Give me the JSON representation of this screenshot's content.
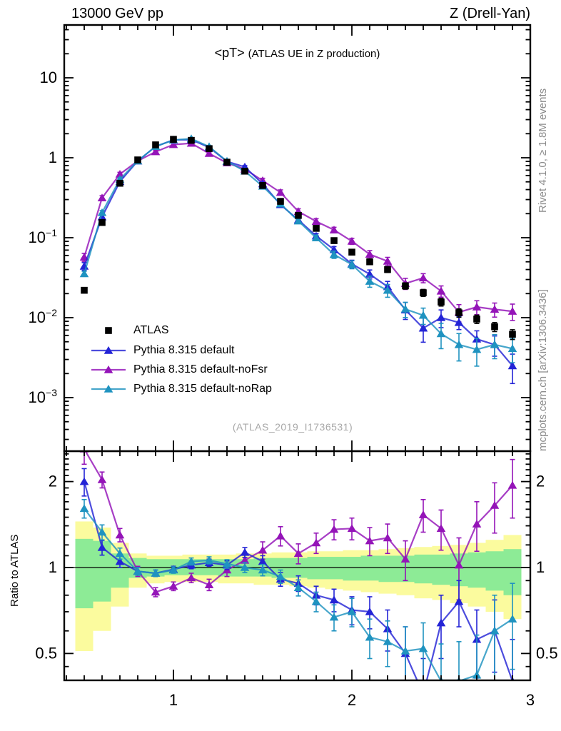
{
  "header": {
    "left": "13000 GeV pp",
    "right": "Z (Drell-Yan)"
  },
  "title": {
    "main": "<pT>",
    "sub": "(ATLAS UE in Z production)"
  },
  "watermark": "(ATLAS_2019_I1736531)",
  "side_notes": {
    "top": "Rivet 4.1.0, ≥ 1.8M events",
    "bottom": "mcplots.cern.ch [arXiv:1306.3436]"
  },
  "ratio_axis_label": "Ratio to ATLAS",
  "colors": {
    "frame": "#000000",
    "atlas": "#000000",
    "blue": "#2424d6",
    "purple": "#9414b8",
    "teal": "#1f93c0",
    "band_yellow": "#fbfb9e",
    "band_green": "#8deb96",
    "gray_text": "#8c8c8c",
    "watermark_gray": "#a8a8a8"
  },
  "chart_data": {
    "type": "line",
    "x": [
      0.5,
      0.6,
      0.7,
      0.8,
      0.9,
      1.0,
      1.1,
      1.2,
      1.3,
      1.4,
      1.5,
      1.6,
      1.7,
      1.8,
      1.9,
      2.0,
      2.1,
      2.2,
      2.3,
      2.4,
      2.5,
      2.6,
      2.7,
      2.8,
      2.9
    ],
    "x_axis": {
      "range": [
        0.388,
        3.0
      ],
      "scale": "linear",
      "major_ticks": [
        1,
        2,
        3
      ],
      "minor_step": 0.1,
      "labels": [
        {
          "v": 1,
          "t": "1"
        },
        {
          "v": 2,
          "t": "2"
        },
        {
          "v": 3,
          "t": "3"
        }
      ]
    },
    "main_axis": {
      "scale": "log",
      "range": [
        0.000214,
        45.8
      ],
      "labels": [
        {
          "v": 10,
          "t": "10"
        },
        {
          "v": 1,
          "t": "1"
        },
        {
          "v": 0.1,
          "t": "10",
          "e": "−1"
        },
        {
          "v": 0.01,
          "t": "10",
          "e": "−2"
        },
        {
          "v": 0.001,
          "t": "10",
          "e": "−3"
        }
      ]
    },
    "ratio_axis": {
      "scale": "log",
      "range": [
        0.403,
        2.556
      ],
      "major_ticks": [
        0.5,
        1,
        2
      ],
      "labels": [
        {
          "v": 2,
          "t": "2"
        },
        {
          "v": 1,
          "t": "1"
        },
        {
          "v": 0.5,
          "t": "0.5"
        }
      ]
    },
    "series": [
      {
        "id": "atlas",
        "label": "ATLAS",
        "color_key": "atlas",
        "marker": "square",
        "role": "reference",
        "values": [
          0.022,
          0.155,
          0.48,
          0.94,
          1.45,
          1.7,
          1.65,
          1.3,
          0.88,
          0.68,
          0.45,
          0.285,
          0.19,
          0.131,
          0.092,
          0.066,
          0.05,
          0.04,
          0.025,
          0.0205,
          0.0157,
          0.0115,
          0.0096,
          0.0077,
          0.0062
        ],
        "err_frac": [
          0.05,
          0.04,
          0.03,
          0.03,
          0.03,
          0.03,
          0.03,
          0.03,
          0.03,
          0.03,
          0.035,
          0.04,
          0.045,
          0.05,
          0.05,
          0.06,
          0.07,
          0.08,
          0.09,
          0.1,
          0.11,
          0.12,
          0.12,
          0.13,
          0.14
        ]
      },
      {
        "id": "noFsr",
        "label": "Pythia 8.315 default-noFsr",
        "color_key": "purple",
        "marker": "triangle",
        "role": "model",
        "values": [
          0.0572,
          0.315,
          0.624,
          0.912,
          1.189,
          1.462,
          1.518,
          1.131,
          0.862,
          0.721,
          0.518,
          0.368,
          0.213,
          0.16,
          0.125,
          0.0904,
          0.062,
          0.0508,
          0.0268,
          0.0314,
          0.0215,
          0.0117,
          0.0136,
          0.0127,
          0.012
        ],
        "ratio": [
          2.6,
          2.03,
          1.3,
          0.97,
          0.82,
          0.86,
          0.92,
          0.87,
          0.98,
          1.06,
          1.15,
          1.29,
          1.12,
          1.22,
          1.36,
          1.37,
          1.24,
          1.27,
          1.07,
          1.53,
          1.37,
          1.02,
          1.42,
          1.65,
          1.94
        ],
        "ratio_err": [
          0.3,
          0.13,
          0.07,
          0.04,
          0.03,
          0.03,
          0.035,
          0.04,
          0.05,
          0.06,
          0.08,
          0.1,
          0.09,
          0.1,
          0.11,
          0.12,
          0.14,
          0.15,
          0.17,
          0.2,
          0.22,
          0.25,
          0.28,
          0.33,
          0.45
        ]
      },
      {
        "id": "default",
        "label": "Pythia 8.315 default",
        "color_key": "blue",
        "marker": "triangle",
        "role": "model",
        "values": [
          0.044,
          0.182,
          0.504,
          0.912,
          1.385,
          1.674,
          1.683,
          1.352,
          0.898,
          0.768,
          0.472,
          0.259,
          0.167,
          0.105,
          0.071,
          0.047,
          0.035,
          0.0244,
          0.0125,
          0.0074,
          0.01,
          0.0087,
          0.0054,
          0.0046,
          0.0025
        ],
        "ratio": [
          2.0,
          1.175,
          1.05,
          0.97,
          0.955,
          0.985,
          1.02,
          1.04,
          1.02,
          1.13,
          1.05,
          0.91,
          0.88,
          0.8,
          0.77,
          0.71,
          0.7,
          0.61,
          0.5,
          0.36,
          0.64,
          0.76,
          0.56,
          0.6,
          0.4
        ],
        "ratio_err": [
          0.22,
          0.07,
          0.05,
          0.03,
          0.025,
          0.025,
          0.03,
          0.03,
          0.035,
          0.045,
          0.05,
          0.05,
          0.055,
          0.06,
          0.07,
          0.08,
          0.09,
          0.1,
          0.12,
          0.12,
          0.16,
          0.14,
          0.15,
          0.17,
          0.16
        ]
      },
      {
        "id": "noRap",
        "label": "Pythia 8.315 default-noRap",
        "color_key": "teal",
        "marker": "triangle",
        "role": "model",
        "values": [
          0.0354,
          0.206,
          0.538,
          0.912,
          1.385,
          1.666,
          1.733,
          1.378,
          0.906,
          0.68,
          0.441,
          0.265,
          0.162,
          0.0996,
          0.0616,
          0.0462,
          0.0285,
          0.022,
          0.0128,
          0.0107,
          0.0063,
          0.0046,
          0.004,
          0.0046,
          0.0041
        ],
        "ratio": [
          1.61,
          1.33,
          1.12,
          0.97,
          0.955,
          0.98,
          1.05,
          1.06,
          1.03,
          1.0,
          0.98,
          0.93,
          0.85,
          0.76,
          0.67,
          0.7,
          0.57,
          0.55,
          0.51,
          0.52,
          0.4,
          0.4,
          0.42,
          0.6,
          0.66
        ],
        "ratio_err": [
          0.12,
          0.08,
          0.05,
          0.03,
          0.025,
          0.025,
          0.03,
          0.03,
          0.035,
          0.04,
          0.045,
          0.05,
          0.055,
          0.06,
          0.07,
          0.08,
          0.09,
          0.1,
          0.11,
          0.12,
          0.14,
          0.15,
          0.16,
          0.2,
          0.22
        ]
      }
    ],
    "legend_order": [
      "atlas",
      "default",
      "noFsr",
      "noRap"
    ],
    "bands": {
      "bin_halfwidth": 0.05,
      "yellow_lo": [
        0.51,
        0.6,
        0.73,
        0.85,
        0.88,
        0.89,
        0.89,
        0.89,
        0.88,
        0.88,
        0.87,
        0.87,
        0.86,
        0.85,
        0.84,
        0.83,
        0.82,
        0.81,
        0.8,
        0.78,
        0.77,
        0.75,
        0.73,
        0.7,
        0.66
      ],
      "yellow_hi": [
        1.45,
        1.38,
        1.22,
        1.12,
        1.1,
        1.1,
        1.11,
        1.11,
        1.11,
        1.12,
        1.12,
        1.13,
        1.13,
        1.14,
        1.14,
        1.15,
        1.15,
        1.16,
        1.17,
        1.18,
        1.19,
        1.2,
        1.22,
        1.25,
        1.3
      ],
      "green_lo": [
        0.72,
        0.76,
        0.85,
        0.92,
        0.93,
        0.94,
        0.94,
        0.94,
        0.93,
        0.93,
        0.93,
        0.92,
        0.92,
        0.91,
        0.91,
        0.9,
        0.9,
        0.89,
        0.89,
        0.88,
        0.87,
        0.86,
        0.85,
        0.83,
        0.8
      ],
      "green_hi": [
        1.26,
        1.24,
        1.12,
        1.08,
        1.07,
        1.07,
        1.07,
        1.07,
        1.07,
        1.07,
        1.08,
        1.08,
        1.08,
        1.09,
        1.09,
        1.09,
        1.1,
        1.1,
        1.1,
        1.11,
        1.11,
        1.12,
        1.13,
        1.14,
        1.16
      ]
    }
  }
}
